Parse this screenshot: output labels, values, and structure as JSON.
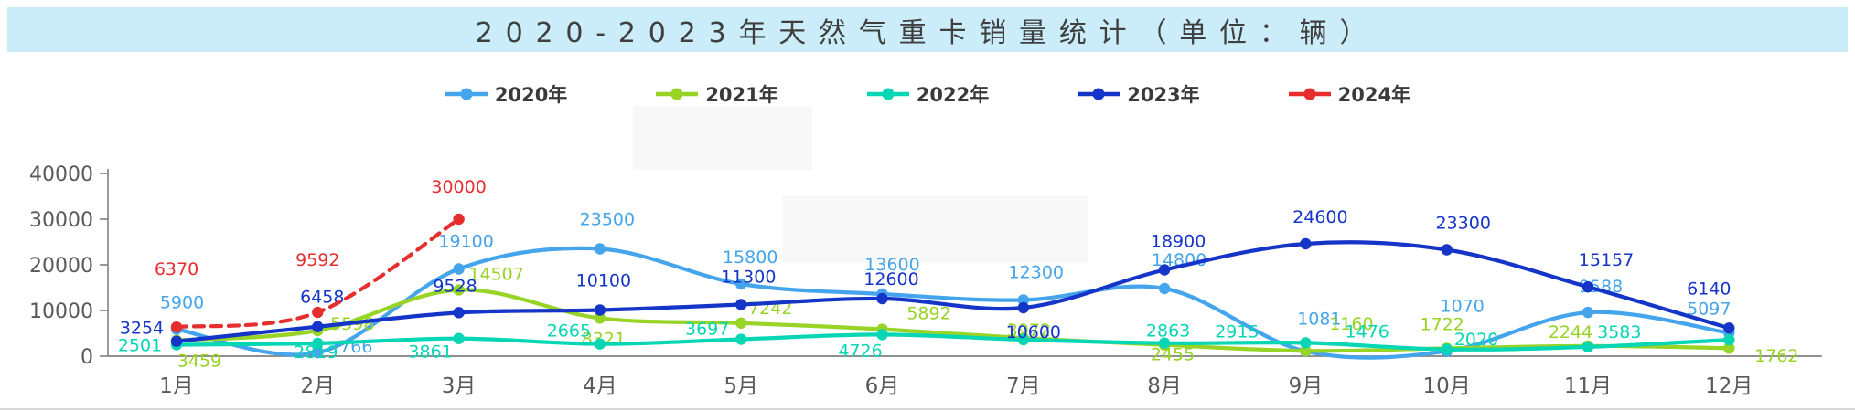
{
  "title": "2020-2023年天然气重卡销量统计（单位：辆）",
  "chart_data": {
    "type": "line",
    "title": "2020-2023年天然气重卡销量统计（单位：辆）",
    "xlabel": "",
    "ylabel": "",
    "ylim": [
      0,
      40000
    ],
    "yticks": [
      "0",
      "10000",
      "20000",
      "30000",
      "40000"
    ],
    "grid": false,
    "legend_position": "top",
    "line_style": "smooth",
    "categories": [
      "1月",
      "2月",
      "3月",
      "4月",
      "5月",
      "6月",
      "7月",
      "8月",
      "9月",
      "10月",
      "11月",
      "12月"
    ],
    "series": [
      {
        "name": "2020年",
        "color": "#45a5ec",
        "dashed": false,
        "values": [
          5900,
          766,
          19100,
          23500,
          15800,
          13600,
          12300,
          14800,
          1081,
          1070,
          9588,
          5097
        ],
        "labels": [
          "5900",
          "766",
          "19100",
          "23500",
          "15800",
          "13600",
          "12300",
          "14800",
          "1081",
          "1070",
          "9588",
          "5097"
        ],
        "label_offsets": [
          [
            6,
            -30
          ],
          [
            42,
            -7
          ],
          [
            8,
            -31
          ],
          [
            8,
            -33
          ],
          [
            10,
            -30
          ],
          [
            11,
            -33
          ],
          [
            14,
            -31
          ],
          [
            16,
            -32
          ],
          [
            15,
            -36
          ],
          [
            17,
            -50
          ],
          [
            14,
            -29
          ],
          [
            -22,
            -27
          ]
        ]
      },
      {
        "name": "2021年",
        "color": "#97d426",
        "dashed": false,
        "values": [
          3459,
          5598,
          14507,
          8321,
          7242,
          5892,
          3972,
          2455,
          1160,
          1722,
          2244,
          1762
        ],
        "labels": [
          "3459",
          "5598",
          "14507",
          "8321",
          "7242",
          "5892",
          "3972",
          "2455",
          "1160",
          "1722",
          "2244",
          "1762"
        ],
        "label_offsets": [
          [
            25,
            22
          ],
          [
            38,
            -8
          ],
          [
            41,
            -18
          ],
          [
            4,
            22
          ],
          [
            32,
            -17
          ],
          [
            51,
            -18
          ],
          [
            6,
            -9
          ],
          [
            9,
            10
          ],
          [
            50,
            -30
          ],
          [
            -5,
            -27
          ],
          [
            -19,
            -16
          ],
          [
            52,
            8
          ]
        ]
      },
      {
        "name": "2022年",
        "color": "#06d6b4",
        "dashed": false,
        "values": [
          2501,
          2819,
          3861,
          2665,
          3697,
          4726,
          3600,
          2863,
          2915,
          1476,
          2020,
          3583
        ],
        "labels": [
          "2501",
          "2819",
          "3861",
          "2665",
          "3697",
          "4726",
          null,
          "2863",
          "2915",
          "1476",
          "2020",
          "3583"
        ],
        "label_offsets": [
          [
            -40,
            0
          ],
          [
            -2,
            9
          ],
          [
            -31,
            14
          ],
          [
            -34,
            -15
          ],
          [
            -37,
            -12
          ],
          [
            -24,
            17
          ],
          null,
          [
            4,
            -14
          ],
          [
            -75,
            -13
          ],
          [
            -87,
            -20
          ],
          [
            -122,
            -9
          ],
          [
            -120,
            -9
          ]
        ]
      },
      {
        "name": "2023年",
        "color": "#1535c8",
        "dashed": false,
        "values": [
          3254,
          6458,
          9528,
          10100,
          11300,
          12600,
          10600,
          18900,
          24600,
          23300,
          15157,
          6140
        ],
        "labels": [
          "3254",
          "6458",
          "9528",
          "10100",
          "11300",
          "12600",
          "10600",
          "18900",
          "24600",
          "23300",
          "15157",
          "6140"
        ],
        "label_offsets": [
          [
            -38,
            -15
          ],
          [
            5,
            -33
          ],
          [
            -4,
            -30
          ],
          [
            4,
            -33
          ],
          [
            8,
            -31
          ],
          [
            10,
            -22
          ],
          [
            11,
            26
          ],
          [
            15,
            -32
          ],
          [
            16,
            -30
          ],
          [
            18,
            -30
          ],
          [
            20,
            -30
          ],
          [
            -22,
            -44
          ]
        ]
      },
      {
        "name": "2024年",
        "color": "#e62e2e",
        "dashed": true,
        "values": [
          6370,
          9592,
          30000
        ],
        "labels": [
          "6370",
          "9592",
          "30000"
        ],
        "label_offsets": [
          [
            0,
            -64
          ],
          [
            0,
            -58
          ],
          [
            0,
            -36
          ]
        ]
      }
    ]
  }
}
